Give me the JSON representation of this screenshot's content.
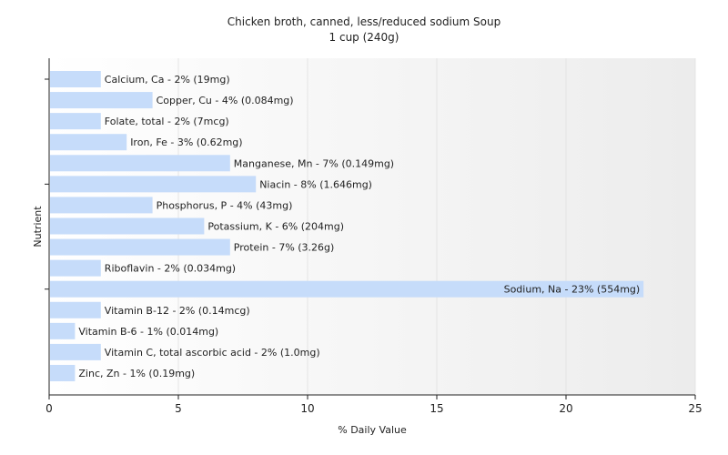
{
  "chart_data": {
    "type": "bar",
    "orientation": "horizontal",
    "title": "Chicken broth, canned, less/reduced sodium Soup",
    "subtitle": "1 cup (240g)",
    "xlabel": "% Daily Value",
    "ylabel": "Nutrient",
    "xlim": [
      0,
      25
    ],
    "xticks": [
      "0",
      "5",
      "10",
      "15",
      "20",
      "25"
    ],
    "grid": true,
    "bar_color": "#c6dcfa",
    "categories": [
      "Calcium, Ca",
      "Copper, Cu",
      "Folate, total",
      "Iron, Fe",
      "Manganese, Mn",
      "Niacin",
      "Phosphorus, P",
      "Potassium, K",
      "Protein",
      "Riboflavin",
      "Sodium, Na",
      "Vitamin B-12",
      "Vitamin B-6",
      "Vitamin C, total ascorbic acid",
      "Zinc, Zn"
    ],
    "values": [
      2,
      4,
      2,
      3,
      7,
      8,
      4,
      6,
      7,
      2,
      23,
      2,
      1,
      2,
      1
    ],
    "labels": [
      "Calcium, Ca - 2% (19mg)",
      "Copper, Cu - 4% (0.084mg)",
      "Folate, total - 2% (7mcg)",
      "Iron, Fe - 3% (0.62mg)",
      "Manganese, Mn - 7% (0.149mg)",
      "Niacin - 8% (1.646mg)",
      "Phosphorus, P - 4% (43mg)",
      "Potassium, K - 6% (204mg)",
      "Protein - 7% (3.26g)",
      "Riboflavin - 2% (0.034mg)",
      "Sodium, Na - 23% (554mg)",
      "Vitamin B-12 - 2% (0.14mcg)",
      "Vitamin B-6 - 1% (0.014mg)",
      "Vitamin C, total ascorbic acid - 2% (1.0mg)",
      "Zinc, Zn - 1% (0.19mg)"
    ]
  }
}
